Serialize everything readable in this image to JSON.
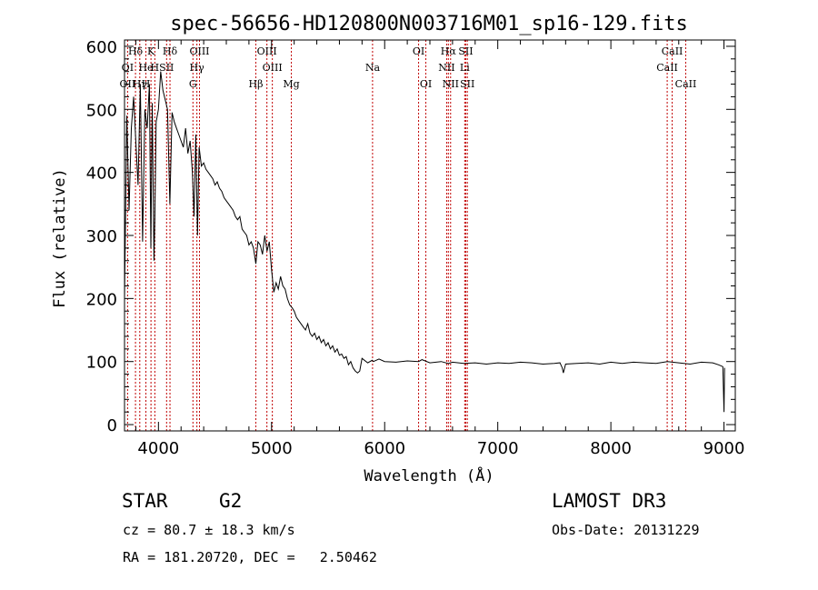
{
  "chart_data": {
    "type": "line",
    "title": "spec-56656-HD120800N003716M01_sp16-129.fits",
    "xlabel": "Wavelength (Å)",
    "ylabel": "Flux (relative)",
    "xlim": [
      3700,
      9100
    ],
    "ylim": [
      -10,
      610
    ],
    "x_ticks": [
      4000,
      5000,
      6000,
      7000,
      8000,
      9000
    ],
    "y_ticks": [
      0,
      100,
      200,
      300,
      400,
      500,
      600
    ],
    "grid": false,
    "series": [
      {
        "name": "flux",
        "color": "#000000",
        "x": [
          3700,
          3720,
          3740,
          3760,
          3780,
          3800,
          3820,
          3840,
          3860,
          3880,
          3900,
          3920,
          3933,
          3945,
          3960,
          3968,
          3980,
          4000,
          4020,
          4040,
          4060,
          4080,
          4101,
          4120,
          4140,
          4160,
          4180,
          4200,
          4220,
          4240,
          4260,
          4280,
          4300,
          4315,
          4330,
          4345,
          4360,
          4380,
          4400,
          4420,
          4440,
          4460,
          4480,
          4500,
          4520,
          4540,
          4560,
          4580,
          4600,
          4620,
          4640,
          4660,
          4680,
          4700,
          4720,
          4740,
          4760,
          4780,
          4800,
          4820,
          4840,
          4861,
          4880,
          4900,
          4920,
          4940,
          4960,
          4980,
          5000,
          5020,
          5040,
          5060,
          5080,
          5100,
          5120,
          5140,
          5160,
          5183,
          5200,
          5220,
          5240,
          5260,
          5280,
          5300,
          5320,
          5340,
          5360,
          5380,
          5400,
          5420,
          5440,
          5460,
          5480,
          5500,
          5520,
          5540,
          5560,
          5580,
          5600,
          5620,
          5640,
          5660,
          5680,
          5700,
          5720,
          5740,
          5760,
          5780,
          5800,
          5850,
          5890,
          5900,
          5950,
          6000,
          6100,
          6200,
          6300,
          6330,
          6400,
          6500,
          6563,
          6600,
          6700,
          6800,
          6900,
          7000,
          7100,
          7200,
          7300,
          7400,
          7500,
          7550,
          7570,
          7580,
          7600,
          7700,
          7800,
          7900,
          8000,
          8100,
          8200,
          8300,
          8400,
          8500,
          8600,
          8700,
          8800,
          8900,
          8950,
          8990,
          9000,
          9005
        ],
        "y": [
          200,
          490,
          340,
          470,
          520,
          450,
          380,
          540,
          290,
          500,
          470,
          540,
          280,
          510,
          260,
          330,
          480,
          500,
          560,
          530,
          515,
          500,
          350,
          495,
          480,
          470,
          460,
          450,
          440,
          470,
          430,
          450,
          400,
          330,
          460,
          300,
          440,
          410,
          415,
          405,
          400,
          395,
          390,
          380,
          385,
          375,
          370,
          360,
          355,
          350,
          345,
          340,
          330,
          325,
          330,
          310,
          305,
          300,
          285,
          290,
          280,
          255,
          290,
          285,
          270,
          300,
          275,
          290,
          245,
          210,
          225,
          215,
          235,
          220,
          215,
          200,
          190,
          185,
          180,
          170,
          165,
          160,
          155,
          150,
          160,
          145,
          140,
          145,
          135,
          140,
          130,
          135,
          125,
          130,
          120,
          125,
          115,
          120,
          110,
          112,
          105,
          108,
          95,
          100,
          90,
          85,
          82,
          85,
          105,
          98,
          102,
          100,
          104,
          100,
          99,
          101,
          100,
          103,
          98,
          100,
          97,
          99,
          97,
          98,
          96,
          98,
          97,
          99,
          98,
          96,
          97,
          98,
          90,
          82,
          96,
          97,
          98,
          96,
          99,
          97,
          99,
          98,
          97,
          100,
          98,
          96,
          99,
          98,
          95,
          92,
          20,
          90
        ]
      }
    ],
    "lines": [
      {
        "label": "Hδ",
        "x": 3797,
        "row": 0
      },
      {
        "label": "K",
        "x": 3934,
        "row": 0
      },
      {
        "label": "Hδ",
        "x": 4102,
        "row": 0
      },
      {
        "label": "OIII",
        "x": 4363,
        "row": 0
      },
      {
        "label": "OIII",
        "x": 4959,
        "row": 0
      },
      {
        "label": "OI",
        "x": 6300,
        "row": 0
      },
      {
        "label": "Hα",
        "x": 6563,
        "row": 0
      },
      {
        "label": "SII",
        "x": 6717,
        "row": 0
      },
      {
        "label": "CaII",
        "x": 8542,
        "row": 0
      },
      {
        "label": "OI",
        "x": 3727,
        "row": 1
      },
      {
        "label": "He",
        "x": 3889,
        "row": 1
      },
      {
        "label": "H",
        "x": 3968,
        "row": 1
      },
      {
        "label": "SII",
        "x": 4072,
        "row": 1
      },
      {
        "label": "Hγ",
        "x": 4340,
        "row": 1
      },
      {
        "label": "OIII",
        "x": 5007,
        "row": 1
      },
      {
        "label": "Na",
        "x": 5893,
        "row": 1
      },
      {
        "label": "NII",
        "x": 6548,
        "row": 1
      },
      {
        "label": "Li",
        "x": 6708,
        "row": 1
      },
      {
        "label": "CaII",
        "x": 8498,
        "row": 1
      },
      {
        "label": "OII",
        "x": 3727,
        "row": 2
      },
      {
        "label": "Hγ",
        "x": 3835,
        "row": 2
      },
      {
        "label": "H",
        "x": 3889,
        "row": 2
      },
      {
        "label": "G",
        "x": 4305,
        "row": 2
      },
      {
        "label": "Hβ",
        "x": 4861,
        "row": 2
      },
      {
        "label": "Mg",
        "x": 5175,
        "row": 2
      },
      {
        "label": "OI",
        "x": 6364,
        "row": 2
      },
      {
        "label": "NII",
        "x": 6583,
        "row": 2
      },
      {
        "label": "SII",
        "x": 6731,
        "row": 2
      },
      {
        "label": "CaII",
        "x": 8662,
        "row": 2
      }
    ],
    "line_markers_x": [
      3727,
      3797,
      3835,
      3889,
      3934,
      3968,
      4072,
      4102,
      4305,
      4340,
      4363,
      4861,
      4959,
      5007,
      5175,
      5893,
      6300,
      6364,
      6548,
      6563,
      6583,
      6708,
      6717,
      6731,
      8498,
      8542,
      8662
    ]
  },
  "info": {
    "class": "STAR",
    "subclass": "G2",
    "survey": "LAMOST DR3",
    "cz": "cz = 80.7 ± 18.3 km/s",
    "obs_date": "Obs-Date: 20131229",
    "coords": "RA = 181.20720, DEC =   2.50462"
  },
  "colors": {
    "axis": "#000000",
    "spectrum": "#000000",
    "line_marker": "#c00000"
  }
}
